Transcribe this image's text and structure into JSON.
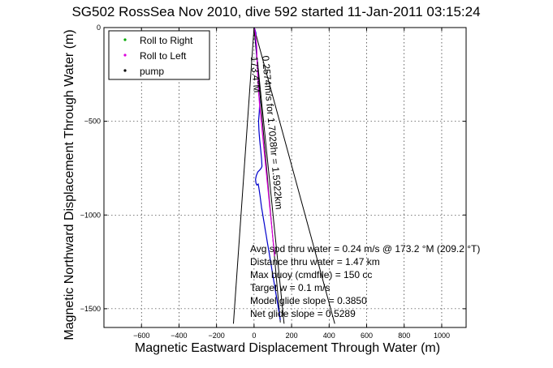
{
  "chart_data": {
    "type": "line",
    "title": "SG502 RossSea Nov 2010, dive 592 started 11-Jan-2011 03:15:24",
    "xlabel": "Magnetic Eastward Displacement Through Water (m)",
    "ylabel": "Magnetic Northward Displacement Through Water (m)",
    "xlim": [
      -800,
      1130
    ],
    "ylim": [
      -1600,
      0
    ],
    "xticks": [
      -600,
      -400,
      -200,
      0,
      200,
      400,
      600,
      800,
      1000
    ],
    "yticks": [
      0,
      -500,
      -1000,
      -1500
    ],
    "grid": true,
    "legend_position": "top-left",
    "legend": [
      {
        "label": "Roll to Right",
        "color": "#00aa00",
        "marker": "dot"
      },
      {
        "label": "Roll to Left",
        "color": "#dd00dd",
        "marker": "dot"
      },
      {
        "label": "pump",
        "color": "#000000",
        "marker": "dot"
      }
    ],
    "series": [
      {
        "color": "#0000cc",
        "x": [
          0,
          5,
          10,
          8,
          12,
          15,
          18,
          20,
          22,
          25,
          30,
          28,
          24,
          26,
          30,
          35,
          40,
          42,
          38,
          30,
          20,
          12,
          8,
          10,
          15,
          22,
          25,
          28,
          32,
          36,
          40,
          45,
          50,
          55,
          60,
          65,
          70,
          75,
          80,
          85,
          90,
          95,
          100,
          105,
          110,
          115,
          120,
          125,
          130,
          135,
          140
        ],
        "y": [
          0,
          -10,
          -30,
          -60,
          -100,
          -150,
          -200,
          -250,
          -300,
          -350,
          -400,
          -450,
          -500,
          -550,
          -600,
          -650,
          -700,
          -740,
          -750,
          -760,
          -770,
          -790,
          -810,
          -830,
          -840,
          -835,
          -850,
          -870,
          -900,
          -930,
          -960,
          -990,
          -1020,
          -1050,
          -1080,
          -1110,
          -1140,
          -1170,
          -1200,
          -1230,
          -1260,
          -1290,
          -1320,
          -1350,
          -1380,
          -1410,
          -1440,
          -1470,
          -1500,
          -1530,
          -1560
        ]
      },
      {
        "color": "#dd00dd",
        "x": [
          3,
          8,
          14,
          16,
          20,
          24,
          30,
          38,
          46,
          54,
          62,
          70,
          78,
          86,
          94,
          102,
          110
        ],
        "y": [
          -5,
          -40,
          -100,
          -180,
          -260,
          -340,
          -420,
          -500,
          -580,
          -660,
          -740,
          -820,
          -900,
          -980,
          -1060,
          -1140,
          -1220
        ]
      }
    ],
    "lines": [
      {
        "x": [
          0,
          140
        ],
        "y": [
          0,
          -1573
        ]
      },
      {
        "x": [
          0,
          -110
        ],
        "y": [
          0,
          -1580
        ]
      },
      {
        "x": [
          0,
          430
        ],
        "y": [
          0,
          -1580
        ]
      },
      {
        "x": [
          0,
          160
        ],
        "y": [
          0,
          -1580
        ]
      }
    ],
    "annotations": [
      "0.2574m/s for 1.7028hr = 1.5922km",
      "173.4°M",
      "Avg spd thru water = 0.24 m/s @ 173.2  °M (209.2 °T)",
      "Distance thru water = 1.47 km",
      "Max buoy (cmdfile) = 150 cc",
      "Target w = 0.1 m/s",
      "Model glide slope = 0.3850",
      "Net glide slope = 0.5289"
    ]
  }
}
